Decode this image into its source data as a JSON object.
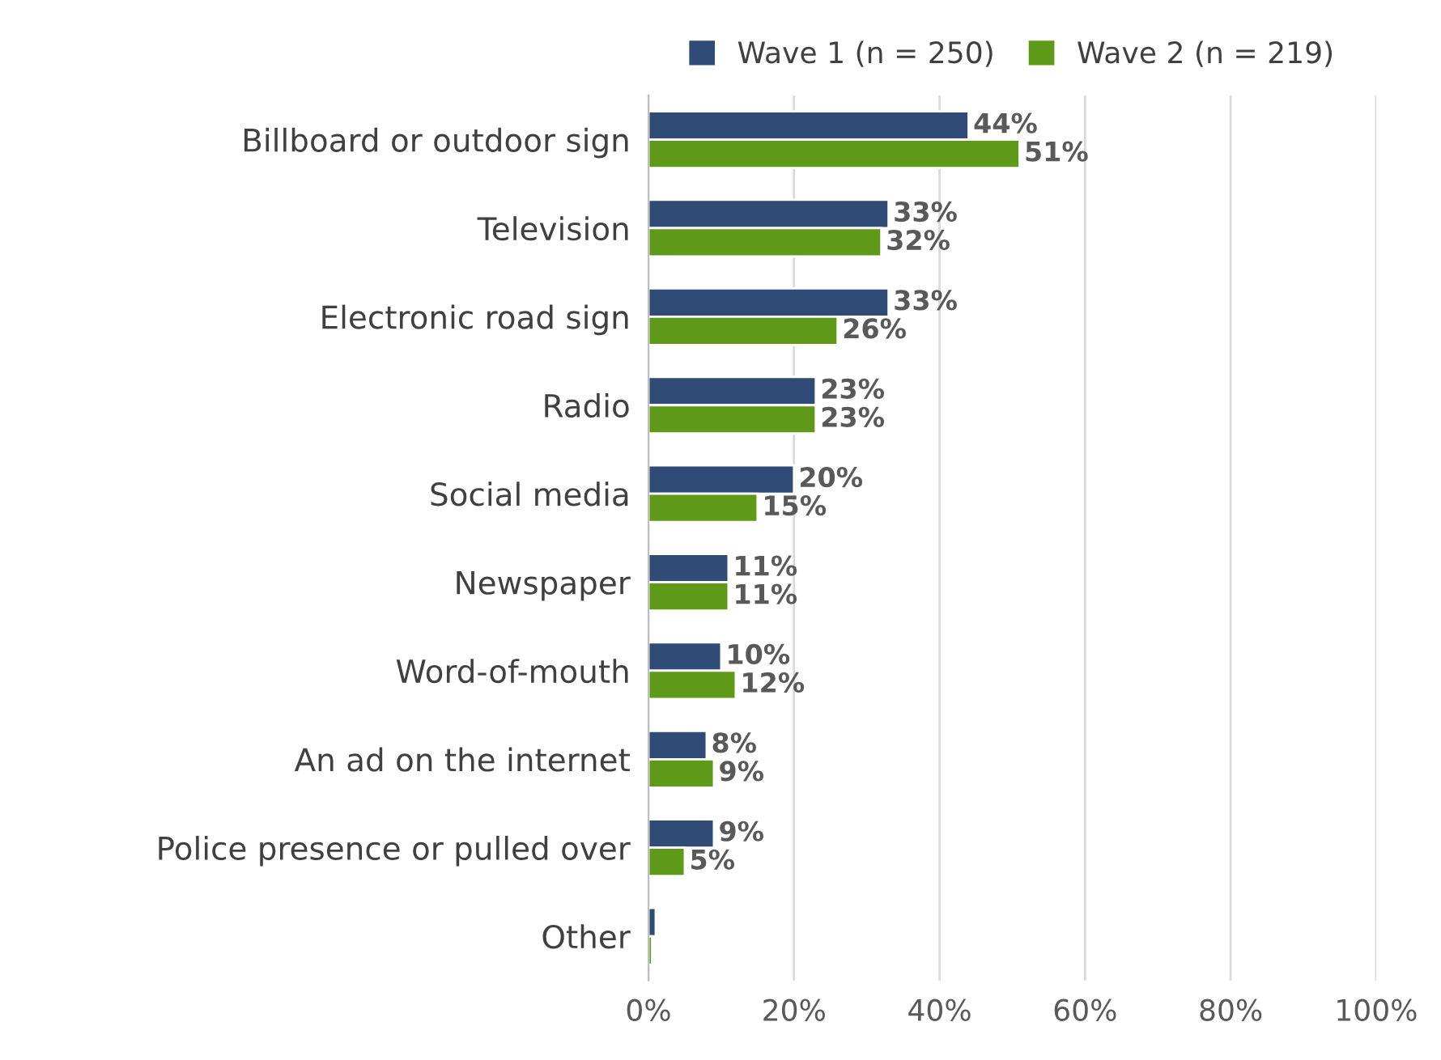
{
  "chart_data": {
    "type": "bar",
    "orientation": "horizontal",
    "categories": [
      "Billboard or outdoor sign",
      "Television",
      "Electronic road sign",
      "Radio",
      "Social media",
      "Newspaper",
      "Word-of-mouth",
      "An ad on the internet",
      "Police presence or pulled over",
      "Other"
    ],
    "series": [
      {
        "name": "Wave 1 (n = 250)",
        "color": "#2f4b76",
        "values": [
          44,
          33,
          33,
          23,
          20,
          11,
          10,
          8,
          9,
          1
        ],
        "value_labels": [
          "44%",
          "33%",
          "33%",
          "23%",
          "20%",
          "11%",
          "10%",
          "8%",
          "9%",
          null
        ]
      },
      {
        "name": "Wave 2 (n = 219)",
        "color": "#5e9a18",
        "values": [
          51,
          32,
          26,
          23,
          15,
          11,
          12,
          9,
          5,
          0.5
        ],
        "value_labels": [
          "51%",
          "32%",
          "26%",
          "23%",
          "15%",
          "11%",
          "12%",
          "9%",
          "5%",
          null
        ]
      }
    ],
    "xlim": [
      0,
      100
    ],
    "xticks": [
      {
        "value": 0,
        "label": "0%"
      },
      {
        "value": 20,
        "label": "20%"
      },
      {
        "value": 40,
        "label": "40%"
      },
      {
        "value": 60,
        "label": "60%"
      },
      {
        "value": 80,
        "label": "80%"
      },
      {
        "value": 100,
        "label": "100%"
      }
    ],
    "grid": "x",
    "legend": "top"
  }
}
